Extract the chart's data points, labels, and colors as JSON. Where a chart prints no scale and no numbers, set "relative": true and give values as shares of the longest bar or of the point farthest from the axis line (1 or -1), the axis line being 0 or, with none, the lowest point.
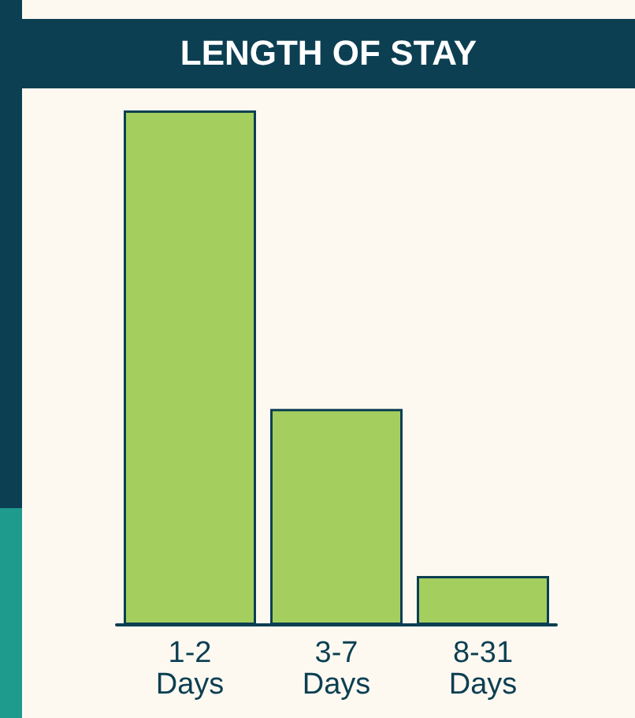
{
  "chart_data": {
    "type": "bar",
    "title": "LENGTH OF STAY",
    "categories": [
      "1-2\nDays",
      "3-7\nDays",
      "8-31\nDays"
    ],
    "values": [
      1,
      0.42,
      0.095
    ],
    "color": "#a4cf5f",
    "relative": true
  }
}
